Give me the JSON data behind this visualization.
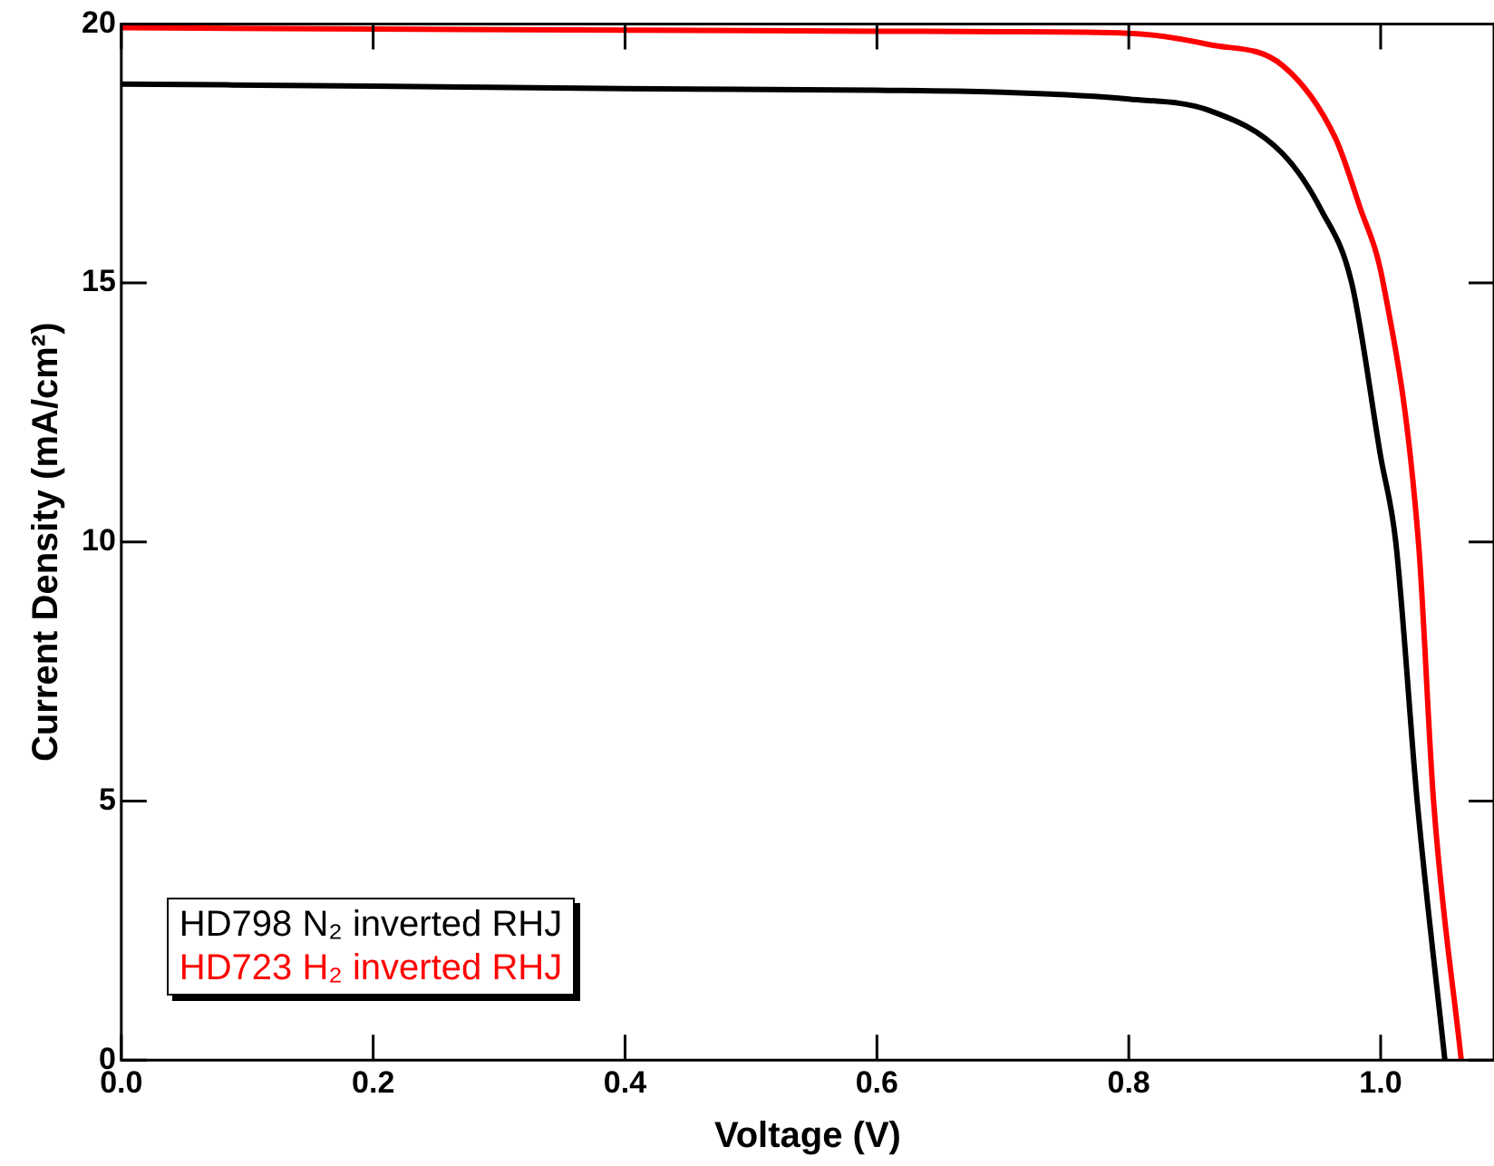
{
  "chart_data": {
    "type": "line",
    "xlabel": "Voltage (V)",
    "ylabel": "Current Density (mA/cm²)",
    "xlim": [
      0,
      1.09
    ],
    "xticks": [
      {
        "value": 0,
        "label": "0.0"
      },
      {
        "value": 0.2,
        "label": "0.2"
      },
      {
        "value": 0.4,
        "label": "0.4"
      },
      {
        "value": 0.6,
        "label": "0.6"
      },
      {
        "value": 0.8,
        "label": "0.8"
      },
      {
        "value": 1.0,
        "label": "1.0"
      }
    ],
    "ylim": [
      0,
      20
    ],
    "yticks": [
      0,
      5,
      10,
      15,
      20
    ],
    "grid": false,
    "legend": "bottom left",
    "marker": "none",
    "line_style": "solid",
    "series": [
      {
        "name": "HD798 N₂ inverted RHJ",
        "color": "#000000",
        "x": [
          0,
          0.2,
          0.4,
          0.6,
          0.7,
          0.8,
          0.864,
          0.922,
          0.953,
          0.977,
          1.0,
          1.012,
          1.029,
          1.051
        ],
        "values": [
          18.84,
          18.8,
          18.75,
          18.72,
          18.68,
          18.55,
          18.33,
          17.5,
          16.4,
          15,
          11.65,
          10,
          5,
          0
        ]
      },
      {
        "name": "HD723 H₂ inverted RHJ",
        "color": "#ff0000",
        "x": [
          0,
          0.2,
          0.4,
          0.6,
          0.7,
          0.8,
          0.864,
          0.922,
          0.964,
          0.983,
          1.002,
          1.03,
          1.042,
          1.064
        ],
        "values": [
          19.93,
          19.9,
          19.88,
          19.86,
          19.85,
          19.82,
          19.6,
          19.2,
          17.8,
          16.5,
          15,
          10,
          5,
          0
        ]
      }
    ]
  }
}
